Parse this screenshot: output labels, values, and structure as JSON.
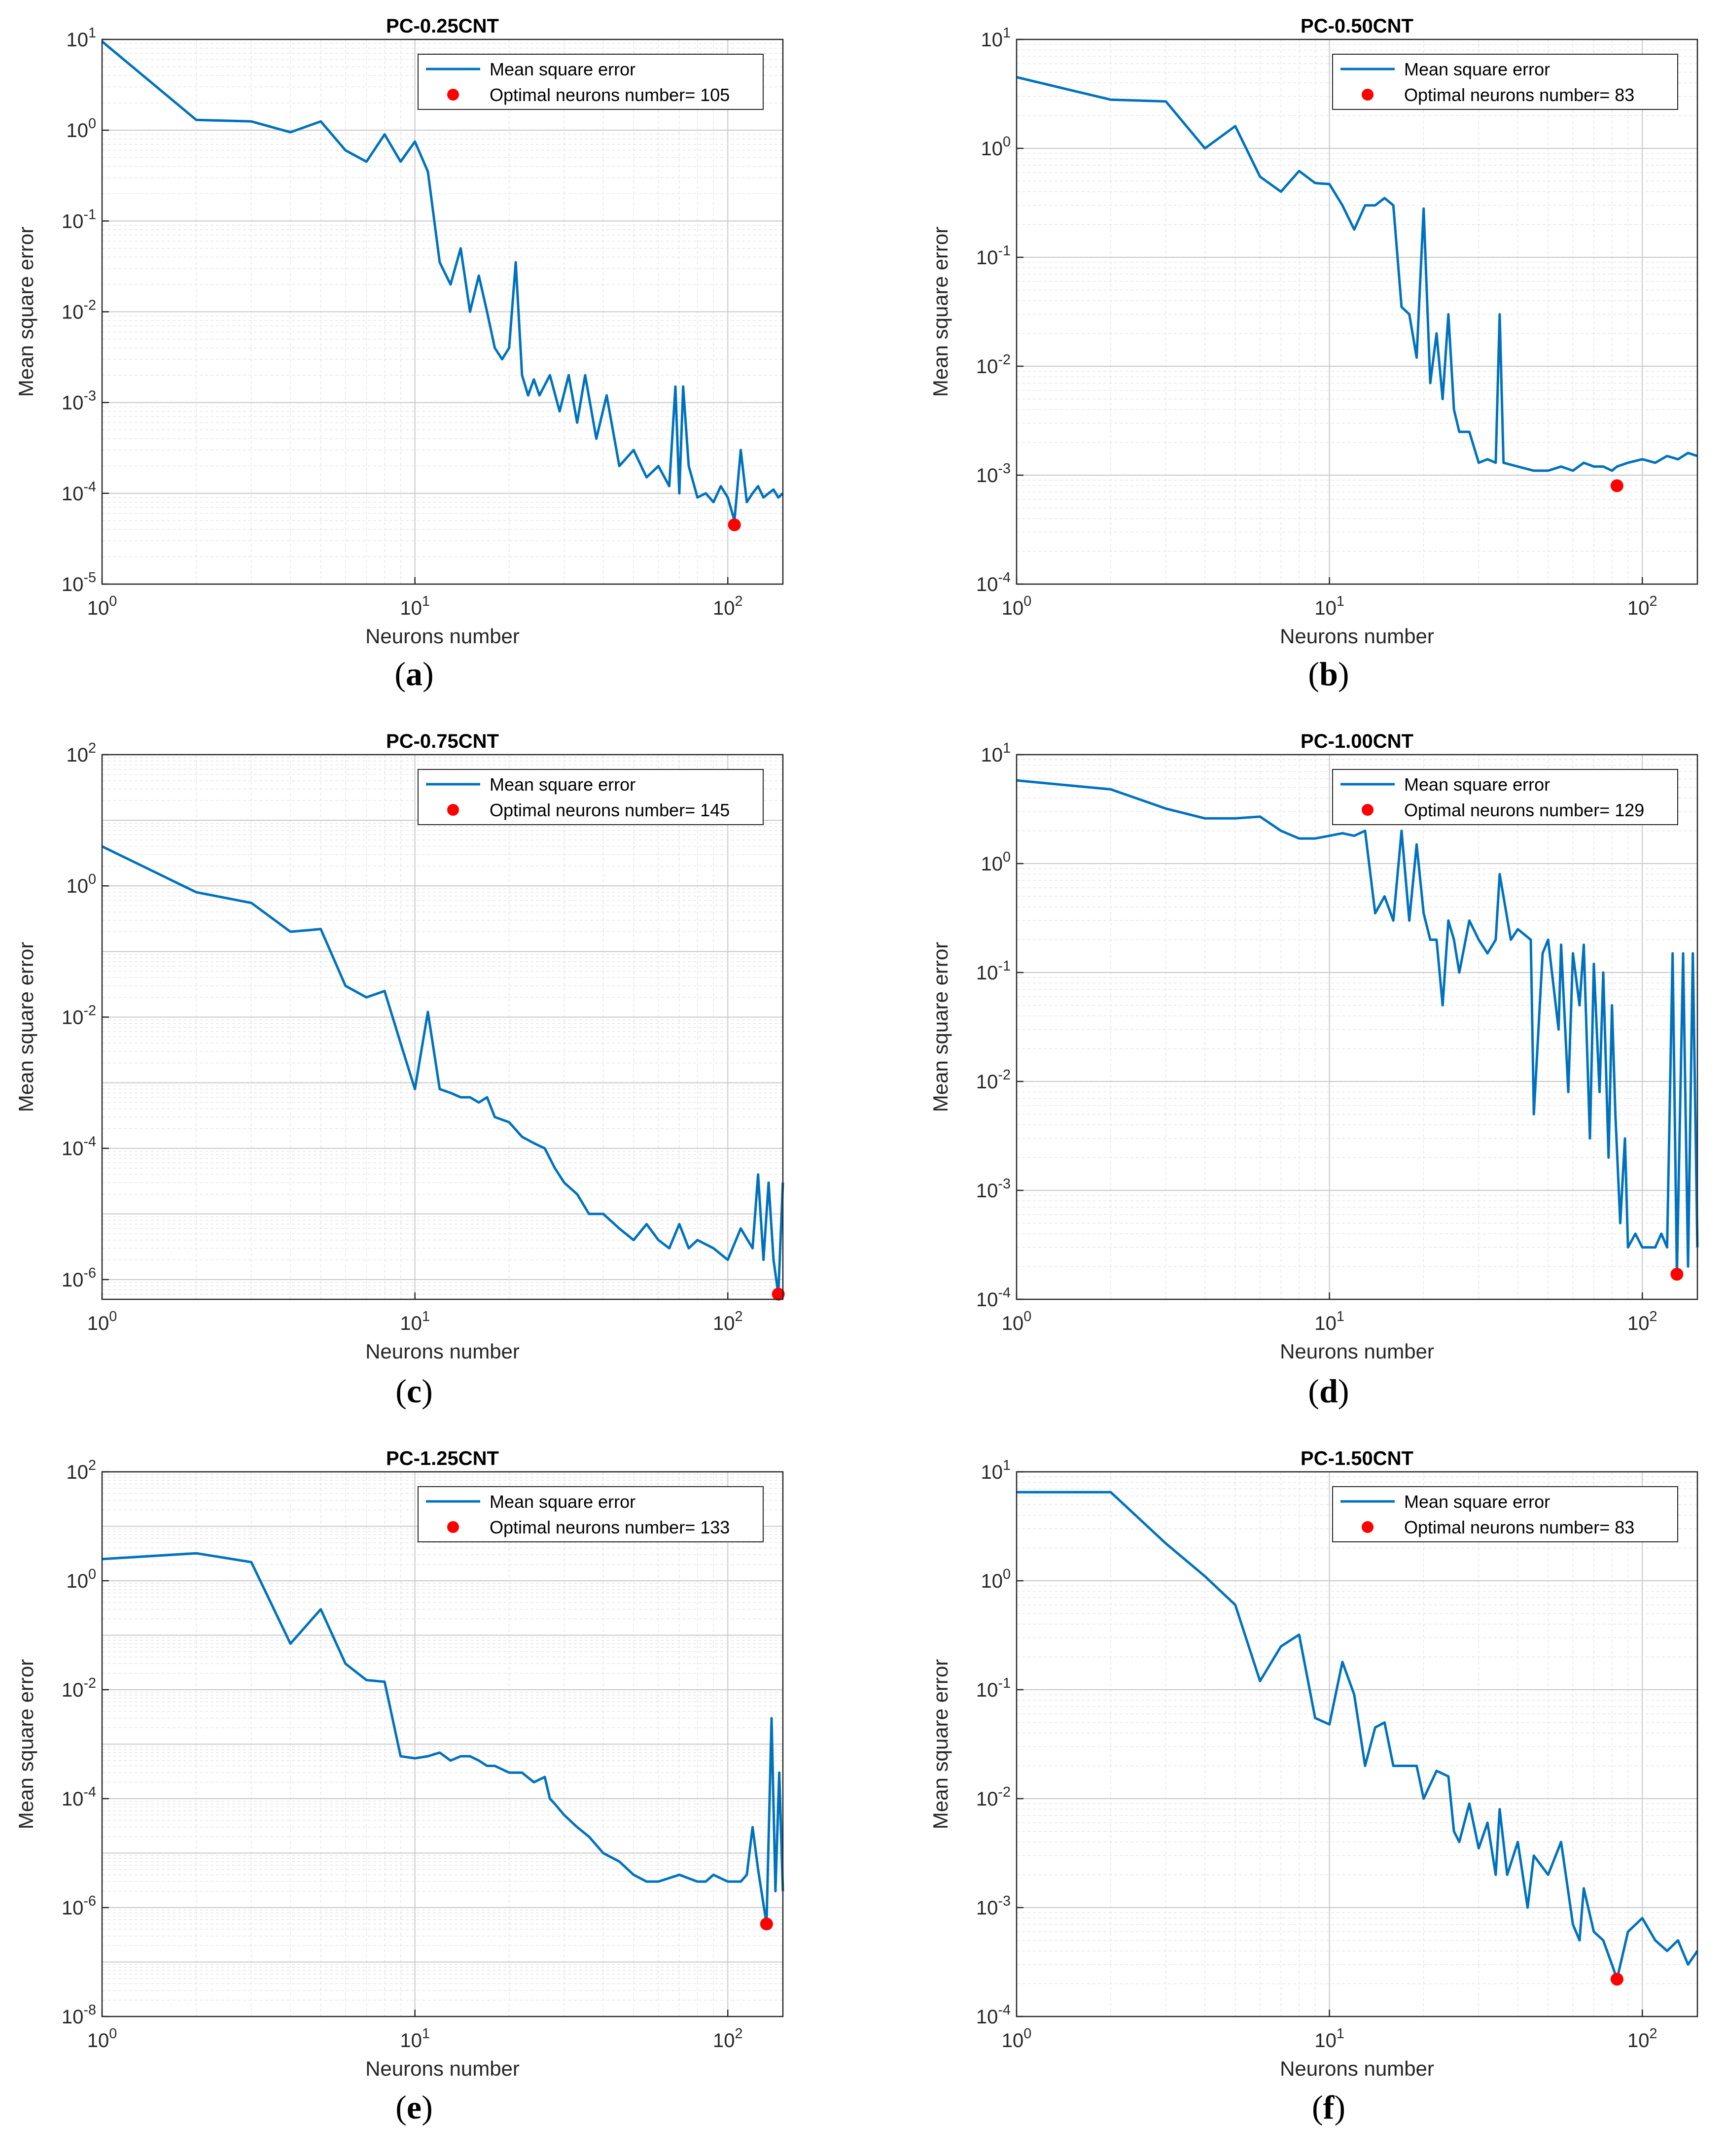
{
  "figure": {
    "panels": [
      {
        "title": "PC-0.25CNT",
        "panel_label": "(a)",
        "legend": {
          "line": "Mean square error",
          "marker": "Optimal neurons number= 105"
        }
      },
      {
        "title": "PC-0.50CNT",
        "panel_label": "(b)",
        "legend": {
          "line": "Mean square error",
          "marker": "Optimal neurons number= 83"
        }
      },
      {
        "title": "PC-0.75CNT",
        "panel_label": "(c)",
        "legend": {
          "line": "Mean square error",
          "marker": "Optimal neurons number= 145"
        }
      },
      {
        "title": "PC-1.00CNT",
        "panel_label": "(d)",
        "legend": {
          "line": "Mean square error",
          "marker": "Optimal neurons number= 129"
        }
      },
      {
        "title": "PC-1.25CNT",
        "panel_label": "(e)",
        "legend": {
          "line": "Mean square error",
          "marker": "Optimal neurons number= 133"
        }
      },
      {
        "title": "PC-1.50CNT",
        "panel_label": "(f)",
        "legend": {
          "line": "Mean square error",
          "marker": "Optimal neurons number= 83"
        }
      }
    ],
    "colors": {
      "line": "#0072BD",
      "marker": "#FF0000",
      "grid": "#d9d9d9",
      "axis": "#262626"
    }
  },
  "chart_data": [
    {
      "type": "line",
      "title": "PC-0.25CNT",
      "xlabel": "Neurons number",
      "ylabel": "Mean square error",
      "xscale": "log",
      "yscale": "log",
      "xlim": [
        1,
        150
      ],
      "ylim": [
        1e-05,
        10
      ],
      "xticks": [
        1,
        10,
        100
      ],
      "xtick_labels": [
        "10^0",
        "10^1",
        "10^2"
      ],
      "yticks": [
        1e-05,
        0.0001,
        0.001,
        0.01,
        0.1,
        1,
        10
      ],
      "ytick_labels": [
        "10^-5",
        "10^-4",
        "10^-3",
        "10^-2",
        "10^-1",
        "10^0",
        "10^1"
      ],
      "legend_position": "top-right",
      "series": [
        {
          "name": "Mean square error",
          "x": [
            1,
            2,
            3,
            4,
            5,
            6,
            7,
            8,
            9,
            10,
            11,
            12,
            13,
            14,
            15,
            16,
            17,
            18,
            19,
            20,
            21,
            22,
            23,
            24,
            25,
            27,
            29,
            31,
            33,
            35,
            38,
            41,
            45,
            50,
            55,
            60,
            65,
            68,
            70,
            72,
            75,
            80,
            85,
            90,
            95,
            100,
            105,
            110,
            115,
            120,
            125,
            130,
            135,
            140,
            145,
            150
          ],
          "y": [
            9.5,
            1.3,
            1.25,
            0.95,
            1.25,
            0.6,
            0.45,
            0.9,
            0.45,
            0.75,
            0.35,
            0.035,
            0.02,
            0.05,
            0.01,
            0.025,
            0.01,
            0.004,
            0.003,
            0.004,
            0.035,
            0.002,
            0.0012,
            0.0018,
            0.0012,
            0.002,
            0.0008,
            0.002,
            0.0006,
            0.002,
            0.0004,
            0.0012,
            0.0002,
            0.0003,
            0.00015,
            0.0002,
            0.00012,
            0.0015,
            0.0001,
            0.0015,
            0.0002,
            9e-05,
            0.0001,
            8e-05,
            0.00012,
            9e-05,
            5e-05,
            0.0003,
            8e-05,
            0.0001,
            0.00012,
            9e-05,
            0.0001,
            0.00011,
            9e-05,
            0.0001
          ]
        },
        {
          "name": "Optimal neurons number= 105",
          "x": [
            105
          ],
          "y": [
            4.5e-05
          ]
        }
      ]
    },
    {
      "type": "line",
      "title": "PC-0.50CNT",
      "xlabel": "Neurons number",
      "ylabel": "Mean square error",
      "xscale": "log",
      "yscale": "log",
      "xlim": [
        1,
        150
      ],
      "ylim": [
        0.0001,
        10
      ],
      "xticks": [
        1,
        10,
        100
      ],
      "xtick_labels": [
        "10^0",
        "10^1",
        "10^2"
      ],
      "yticks": [
        0.0001,
        0.001,
        0.01,
        0.1,
        1,
        10
      ],
      "ytick_labels": [
        "10^-4",
        "10^-3",
        "10^-2",
        "10^-1",
        "10^0",
        "10^1"
      ],
      "legend_position": "top-right",
      "series": [
        {
          "name": "Mean square error",
          "x": [
            1,
            2,
            3,
            4,
            5,
            6,
            7,
            8,
            9,
            10,
            11,
            12,
            13,
            14,
            15,
            16,
            17,
            18,
            19,
            20,
            21,
            22,
            23,
            24,
            25,
            26,
            28,
            30,
            32,
            34,
            35,
            36,
            40,
            45,
            50,
            55,
            60,
            65,
            70,
            75,
            80,
            83,
            90,
            100,
            110,
            120,
            130,
            140,
            150
          ],
          "y": [
            4.5,
            2.8,
            2.7,
            1.0,
            1.6,
            0.55,
            0.4,
            0.62,
            0.48,
            0.47,
            0.3,
            0.18,
            0.3,
            0.3,
            0.35,
            0.3,
            0.035,
            0.03,
            0.012,
            0.28,
            0.007,
            0.02,
            0.005,
            0.03,
            0.004,
            0.0025,
            0.0025,
            0.0013,
            0.0014,
            0.0013,
            0.03,
            0.0013,
            0.0012,
            0.0011,
            0.0011,
            0.0012,
            0.0011,
            0.0013,
            0.0012,
            0.0012,
            0.0011,
            0.0012,
            0.0013,
            0.0014,
            0.0013,
            0.0015,
            0.0014,
            0.0016,
            0.0015
          ]
        },
        {
          "name": "Optimal neurons number= 83",
          "x": [
            83
          ],
          "y": [
            0.0008
          ]
        }
      ]
    },
    {
      "type": "line",
      "title": "PC-0.75CNT",
      "xlabel": "Neurons number",
      "ylabel": "Mean square error",
      "xscale": "log",
      "yscale": "log",
      "xlim": [
        1,
        150
      ],
      "ylim": [
        5e-07,
        100
      ],
      "xticks": [
        1,
        10,
        100
      ],
      "xtick_labels": [
        "10^0",
        "10^1",
        "10^2"
      ],
      "yticks": [
        1e-06,
        0.0001,
        0.01,
        1,
        100
      ],
      "ytick_labels": [
        "10^-6",
        "10^-4",
        "10^-2",
        "10^0",
        "10^2"
      ],
      "legend_position": "top-right",
      "series": [
        {
          "name": "Mean square error",
          "x": [
            1,
            2,
            3,
            4,
            5,
            6,
            7,
            8,
            9,
            10,
            11,
            12,
            13,
            14,
            15,
            16,
            17,
            18,
            20,
            22,
            24,
            26,
            28,
            30,
            33,
            36,
            40,
            45,
            50,
            55,
            60,
            65,
            70,
            75,
            80,
            90,
            100,
            110,
            120,
            125,
            130,
            135,
            140,
            145,
            150
          ],
          "y": [
            4,
            0.8,
            0.55,
            0.2,
            0.22,
            0.03,
            0.02,
            0.025,
            0.004,
            0.0008,
            0.012,
            0.0008,
            0.0007,
            0.0006,
            0.0006,
            0.0005,
            0.0006,
            0.0003,
            0.00025,
            0.00015,
            0.00012,
            0.0001,
            5e-05,
            3e-05,
            2e-05,
            1e-05,
            1e-05,
            6e-06,
            4e-06,
            7e-06,
            4e-06,
            3e-06,
            7e-06,
            3e-06,
            4e-06,
            3e-06,
            2e-06,
            6e-06,
            3e-06,
            4e-05,
            2e-06,
            3e-05,
            2e-06,
            6e-07,
            3e-05
          ]
        },
        {
          "name": "Optimal neurons number= 145",
          "x": [
            145
          ],
          "y": [
            6e-07
          ]
        }
      ]
    },
    {
      "type": "line",
      "title": "PC-1.00CNT",
      "xlabel": "Neurons number",
      "ylabel": "Mean square error",
      "xscale": "log",
      "yscale": "log",
      "xlim": [
        1,
        150
      ],
      "ylim": [
        0.0001,
        10
      ],
      "xticks": [
        1,
        10,
        100
      ],
      "xtick_labels": [
        "10^0",
        "10^1",
        "10^2"
      ],
      "yticks": [
        0.0001,
        0.001,
        0.01,
        0.1,
        1,
        10
      ],
      "ytick_labels": [
        "10^-4",
        "10^-3",
        "10^-2",
        "10^-1",
        "10^0",
        "10^1"
      ],
      "legend_position": "top-right",
      "series": [
        {
          "name": "Mean square error",
          "x": [
            1,
            2,
            3,
            4,
            5,
            6,
            7,
            8,
            9,
            10,
            11,
            12,
            13,
            14,
            15,
            16,
            17,
            18,
            19,
            20,
            21,
            22,
            23,
            24,
            25,
            26,
            28,
            30,
            32,
            34,
            35,
            38,
            40,
            44,
            45,
            48,
            50,
            54,
            55,
            58,
            60,
            63,
            65,
            68,
            70,
            73,
            75,
            78,
            80,
            82,
            85,
            88,
            90,
            95,
            100,
            105,
            110,
            115,
            120,
            125,
            129,
            135,
            140,
            145,
            150
          ],
          "y": [
            5.8,
            4.8,
            3.2,
            2.6,
            2.6,
            2.7,
            2.0,
            1.7,
            1.7,
            1.8,
            1.9,
            1.8,
            2.0,
            0.35,
            0.5,
            0.3,
            2.0,
            0.3,
            1.5,
            0.35,
            0.2,
            0.2,
            0.05,
            0.3,
            0.2,
            0.1,
            0.3,
            0.2,
            0.15,
            0.2,
            0.8,
            0.2,
            0.25,
            0.2,
            0.005,
            0.15,
            0.2,
            0.03,
            0.18,
            0.008,
            0.15,
            0.05,
            0.18,
            0.003,
            0.12,
            0.008,
            0.1,
            0.002,
            0.05,
            0.005,
            0.0005,
            0.003,
            0.0003,
            0.0004,
            0.0003,
            0.0003,
            0.0003,
            0.0004,
            0.0003,
            0.15,
            0.00017,
            0.15,
            0.0002,
            0.15,
            0.0003
          ]
        },
        {
          "name": "Optimal neurons number= 129",
          "x": [
            129
          ],
          "y": [
            0.00017
          ]
        }
      ]
    },
    {
      "type": "line",
      "title": "PC-1.25CNT",
      "xlabel": "Neurons number",
      "ylabel": "Mean square error",
      "xscale": "log",
      "yscale": "log",
      "xlim": [
        1,
        150
      ],
      "ylim": [
        1e-08,
        100
      ],
      "xticks": [
        1,
        10,
        100
      ],
      "xtick_labels": [
        "10^0",
        "10^1",
        "10^2"
      ],
      "yticks": [
        1e-08,
        1e-06,
        0.0001,
        0.01,
        1,
        100
      ],
      "ytick_labels": [
        "10^-8",
        "10^-6",
        "10^-4",
        "10^-2",
        "10^0",
        "10^2"
      ],
      "legend_position": "top-right",
      "series": [
        {
          "name": "Mean square error",
          "x": [
            1,
            2,
            3,
            4,
            5,
            6,
            7,
            8,
            9,
            10,
            11,
            12,
            13,
            14,
            15,
            16,
            17,
            18,
            20,
            22,
            24,
            26,
            27,
            28,
            30,
            33,
            36,
            40,
            45,
            50,
            55,
            60,
            70,
            80,
            85,
            90,
            100,
            110,
            115,
            120,
            125,
            133,
            138,
            142,
            146,
            150
          ],
          "y": [
            2.5,
            3.2,
            2.2,
            0.07,
            0.3,
            0.03,
            0.015,
            0.014,
            0.0006,
            0.00055,
            0.0006,
            0.0007,
            0.0005,
            0.0006,
            0.0006,
            0.0005,
            0.0004,
            0.0004,
            0.0003,
            0.0003,
            0.0002,
            0.00025,
            0.0001,
            8e-05,
            5e-05,
            3e-05,
            2e-05,
            1e-05,
            7e-06,
            4e-06,
            3e-06,
            3e-06,
            4e-06,
            3e-06,
            3e-06,
            4e-06,
            3e-06,
            3e-06,
            4e-06,
            3e-05,
            5e-06,
            5e-07,
            0.003,
            2e-06,
            0.0003,
            2e-06
          ]
        },
        {
          "name": "Optimal neurons number= 133",
          "x": [
            133
          ],
          "y": [
            5e-07
          ]
        }
      ]
    },
    {
      "type": "line",
      "title": "PC-1.50CNT",
      "xlabel": "Neurons number",
      "ylabel": "Mean square error",
      "xscale": "log",
      "yscale": "log",
      "xlim": [
        1,
        150
      ],
      "ylim": [
        0.0001,
        10
      ],
      "xticks": [
        1,
        10,
        100
      ],
      "xtick_labels": [
        "10^0",
        "10^1",
        "10^2"
      ],
      "yticks": [
        0.0001,
        0.001,
        0.01,
        0.1,
        1,
        10
      ],
      "ytick_labels": [
        "10^-4",
        "10^-3",
        "10^-2",
        "10^-1",
        "10^0",
        "10^1"
      ],
      "legend_position": "top-right",
      "series": [
        {
          "name": "Mean square error",
          "x": [
            1,
            2,
            3,
            4,
            5,
            6,
            7,
            8,
            9,
            10,
            11,
            12,
            13,
            14,
            15,
            16,
            17,
            18,
            19,
            20,
            22,
            24,
            25,
            26,
            28,
            30,
            32,
            34,
            35,
            37,
            40,
            43,
            45,
            50,
            55,
            60,
            63,
            65,
            70,
            75,
            80,
            83,
            90,
            100,
            110,
            120,
            130,
            140,
            150
          ],
          "y": [
            6.5,
            6.5,
            2.2,
            1.1,
            0.6,
            0.12,
            0.25,
            0.32,
            0.055,
            0.048,
            0.18,
            0.09,
            0.02,
            0.045,
            0.05,
            0.02,
            0.02,
            0.02,
            0.02,
            0.01,
            0.018,
            0.016,
            0.005,
            0.004,
            0.009,
            0.0035,
            0.006,
            0.002,
            0.008,
            0.002,
            0.004,
            0.001,
            0.003,
            0.002,
            0.004,
            0.0007,
            0.0005,
            0.0015,
            0.0006,
            0.0005,
            0.0003,
            0.00022,
            0.0006,
            0.0008,
            0.0005,
            0.0004,
            0.0005,
            0.0003,
            0.0004
          ]
        },
        {
          "name": "Optimal neurons number= 83",
          "x": [
            83
          ],
          "y": [
            0.00022
          ]
        }
      ]
    }
  ]
}
